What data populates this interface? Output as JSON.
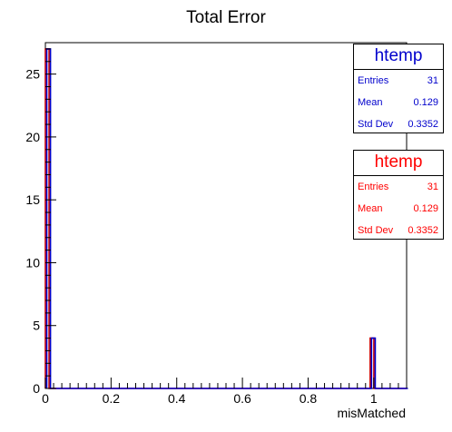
{
  "chart_data": {
    "type": "bar",
    "title": "Total Error",
    "xlabel": "misMatched",
    "ylabel": "",
    "xlim": [
      0,
      1.1
    ],
    "ylim": [
      0,
      27.5
    ],
    "bin_width": 0.0113,
    "x_ticks": [
      "0",
      "0.2",
      "0.4",
      "0.6",
      "0.8",
      "1"
    ],
    "y_ticks": [
      "0",
      "5",
      "10",
      "15",
      "20",
      "25"
    ],
    "bins": [
      {
        "x_low": 0.0,
        "count": 27
      },
      {
        "x_low": 0.989,
        "count": 4
      }
    ],
    "series": [
      {
        "color": "#cc0000"
      },
      {
        "color": "#0000cc"
      }
    ],
    "stat_boxes": [
      {
        "name": "htemp",
        "color": "#0000cc",
        "entries_label": "Entries",
        "entries": "31",
        "mean_label": "Mean",
        "mean": "0.129",
        "std_label": "Std Dev",
        "std": "0.3352"
      },
      {
        "name": "htemp",
        "color": "#ff0000",
        "entries_label": "Entries",
        "entries": "31",
        "mean_label": "Mean",
        "mean": "0.129",
        "std_label": "Std Dev",
        "std": "0.3352"
      }
    ]
  }
}
